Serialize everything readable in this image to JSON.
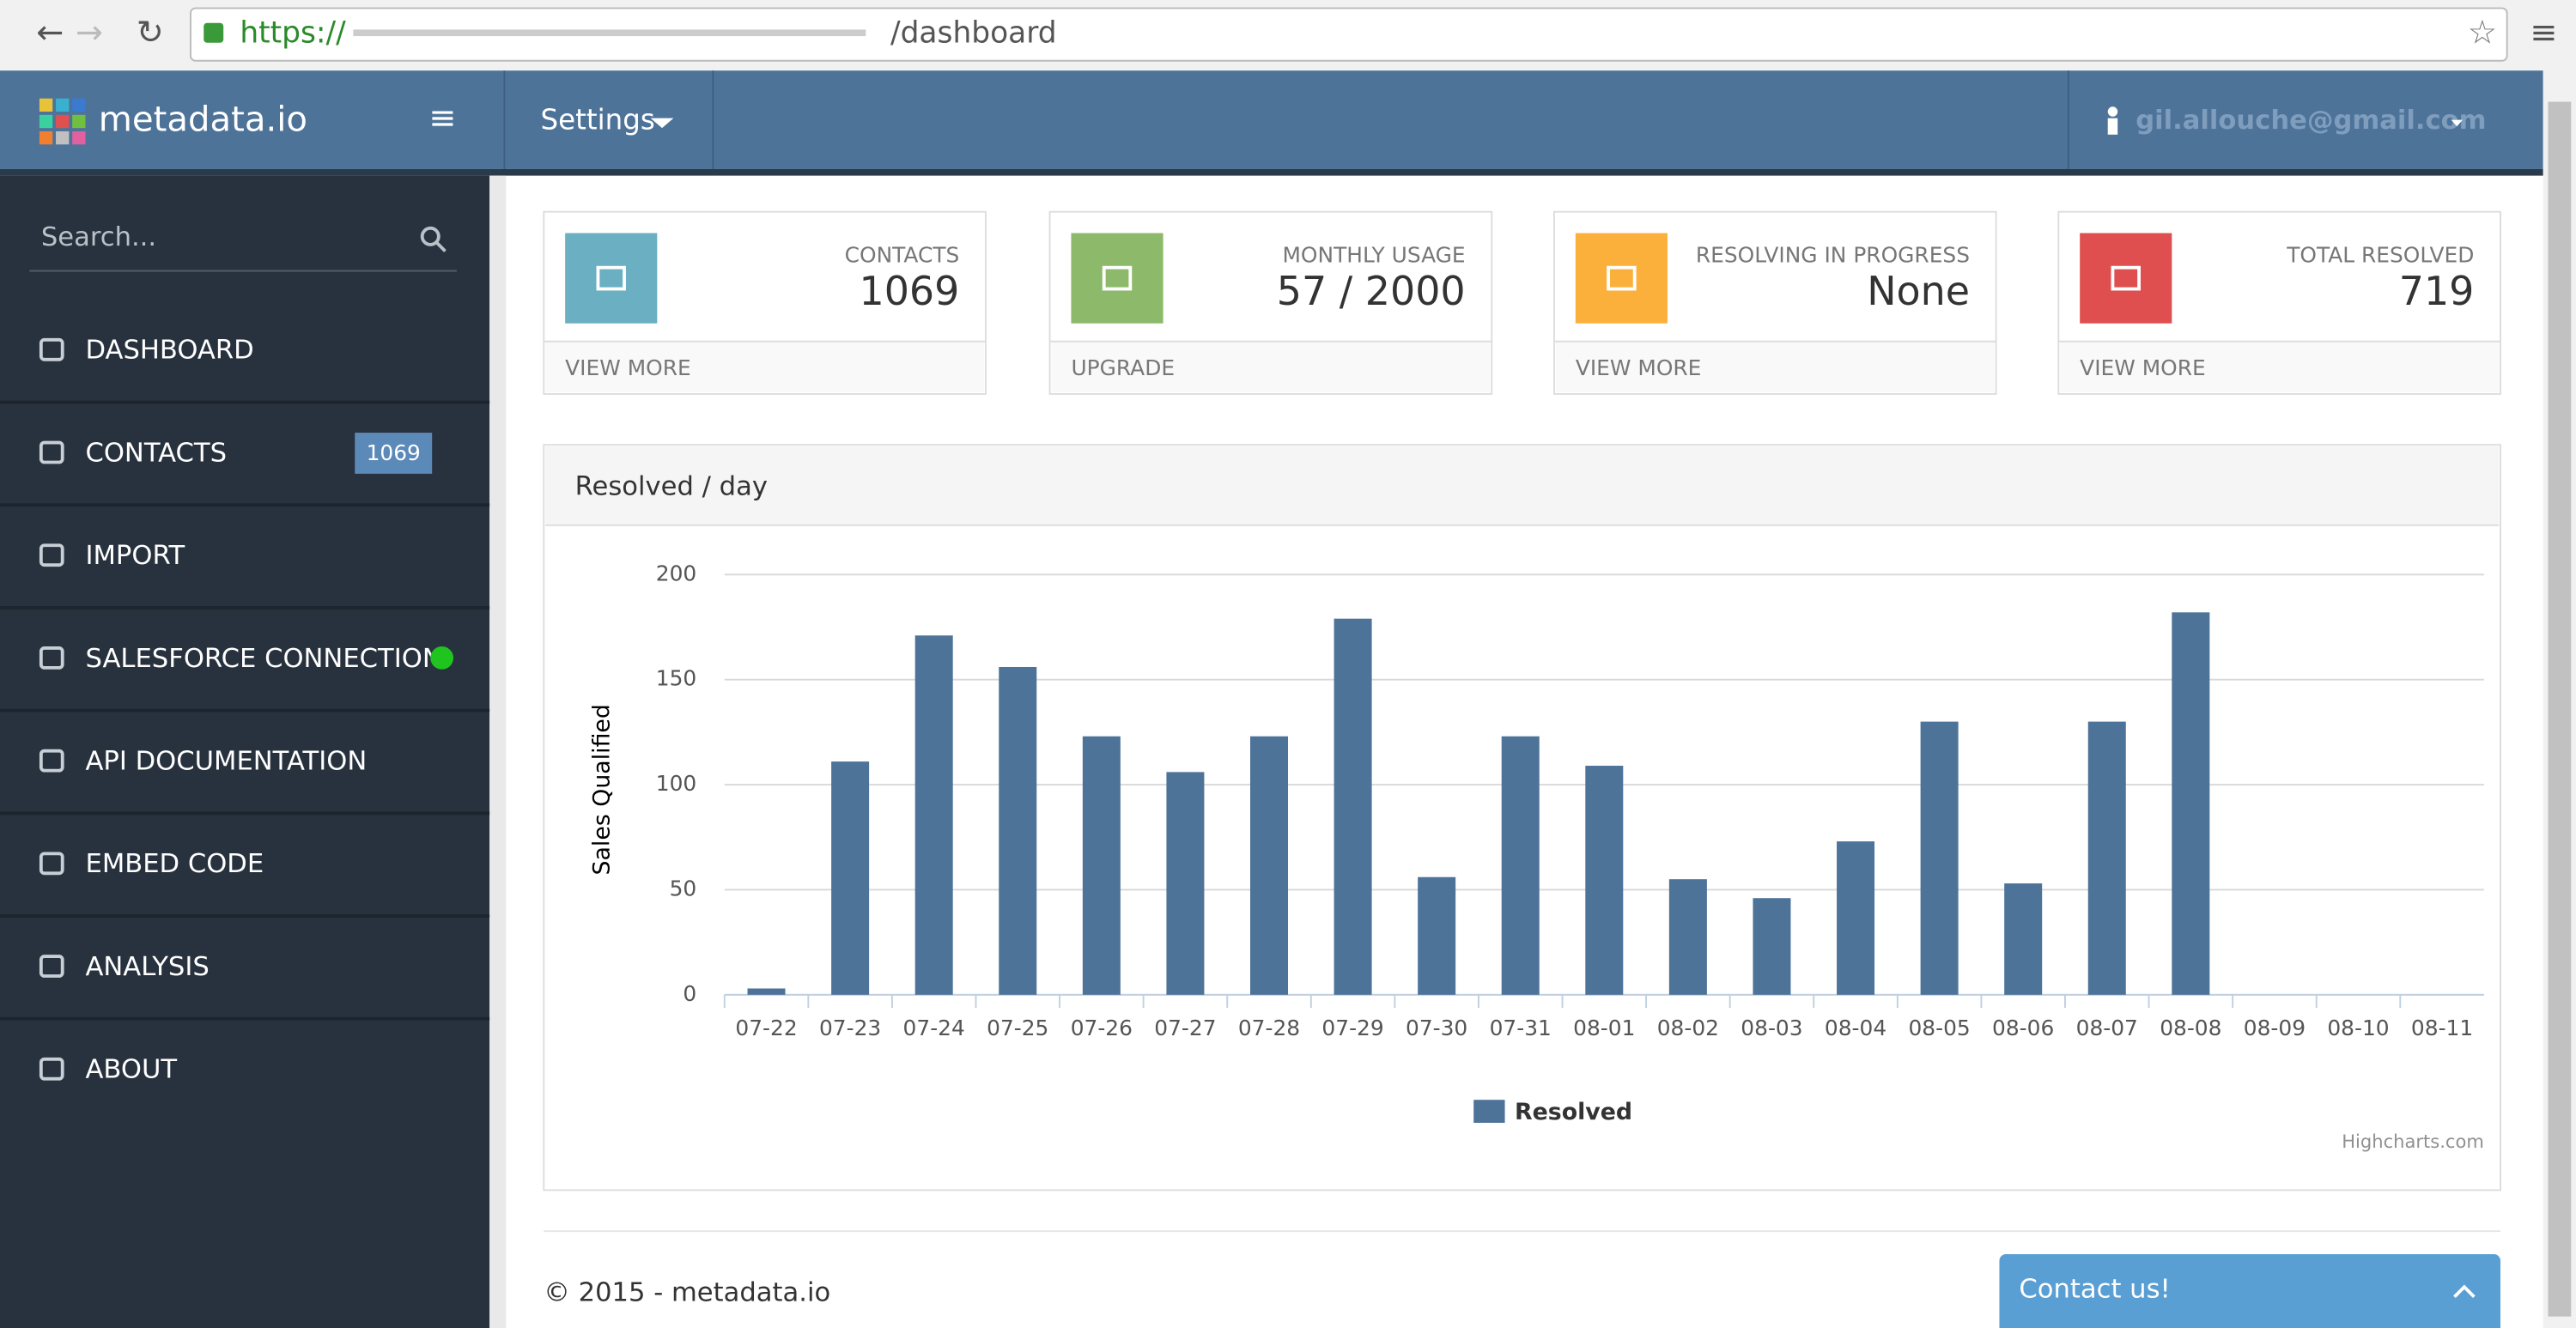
{
  "browser": {
    "scheme": "https://",
    "path": "/dashboard"
  },
  "navbar": {
    "brand": "metadata.io",
    "menu": "Settings",
    "user": "gil.allouche@gmail.com"
  },
  "sidebar": {
    "search": "Search...",
    "items": [
      {
        "label": "DASHBOARD"
      },
      {
        "label": "CONTACTS",
        "badge": "1069"
      },
      {
        "label": "IMPORT"
      },
      {
        "label": "SALESFORCE CONNECTION"
      },
      {
        "label": "API DOCUMENTATION"
      },
      {
        "label": "EMBED CODE"
      },
      {
        "label": "ANALYSIS"
      },
      {
        "label": "ABOUT"
      }
    ]
  },
  "cards": [
    {
      "label": "CONTACTS",
      "value": "1069",
      "link": "VIEW MORE",
      "color": "#6aafc2"
    },
    {
      "label": "MONTHLY USAGE",
      "value": "57 / 2000",
      "link": "UPGRADE",
      "color": "#8db96a"
    },
    {
      "label": "RESOLVING IN PROGRESS",
      "value": "None",
      "link": "VIEW MORE",
      "color": "#fcb03c"
    },
    {
      "label": "TOTAL RESOLVED",
      "value": "719",
      "link": "VIEW MORE",
      "color": "#e04f4f"
    }
  ],
  "chart_data": {
    "type": "bar",
    "title": "Resolved / day",
    "y_label": "Sales Qualified",
    "credit": "Highcharts.com",
    "categories": [
      "07-22",
      "07-23",
      "07-24",
      "07-25",
      "07-26",
      "07-27",
      "07-28",
      "07-29",
      "07-30",
      "07-31",
      "08-01",
      "08-02",
      "08-03",
      "08-04",
      "08-05",
      "08-06",
      "08-07",
      "08-08",
      "08-09",
      "08-10",
      "08-11"
    ],
    "series": [
      {
        "name": "Resolved",
        "color": "#4e7399",
        "values": [
          3,
          111,
          171,
          156,
          123,
          106,
          123,
          179,
          56,
          123,
          109,
          55,
          46,
          73,
          130,
          53,
          130,
          182,
          0,
          0,
          0
        ]
      }
    ],
    "ylim": [
      0,
      200
    ],
    "yticks": [
      0,
      50,
      100,
      150,
      200
    ],
    "grid": true
  },
  "footer": {
    "copyright": "© 2015 - metadata.io",
    "contact": "Contact us!"
  }
}
